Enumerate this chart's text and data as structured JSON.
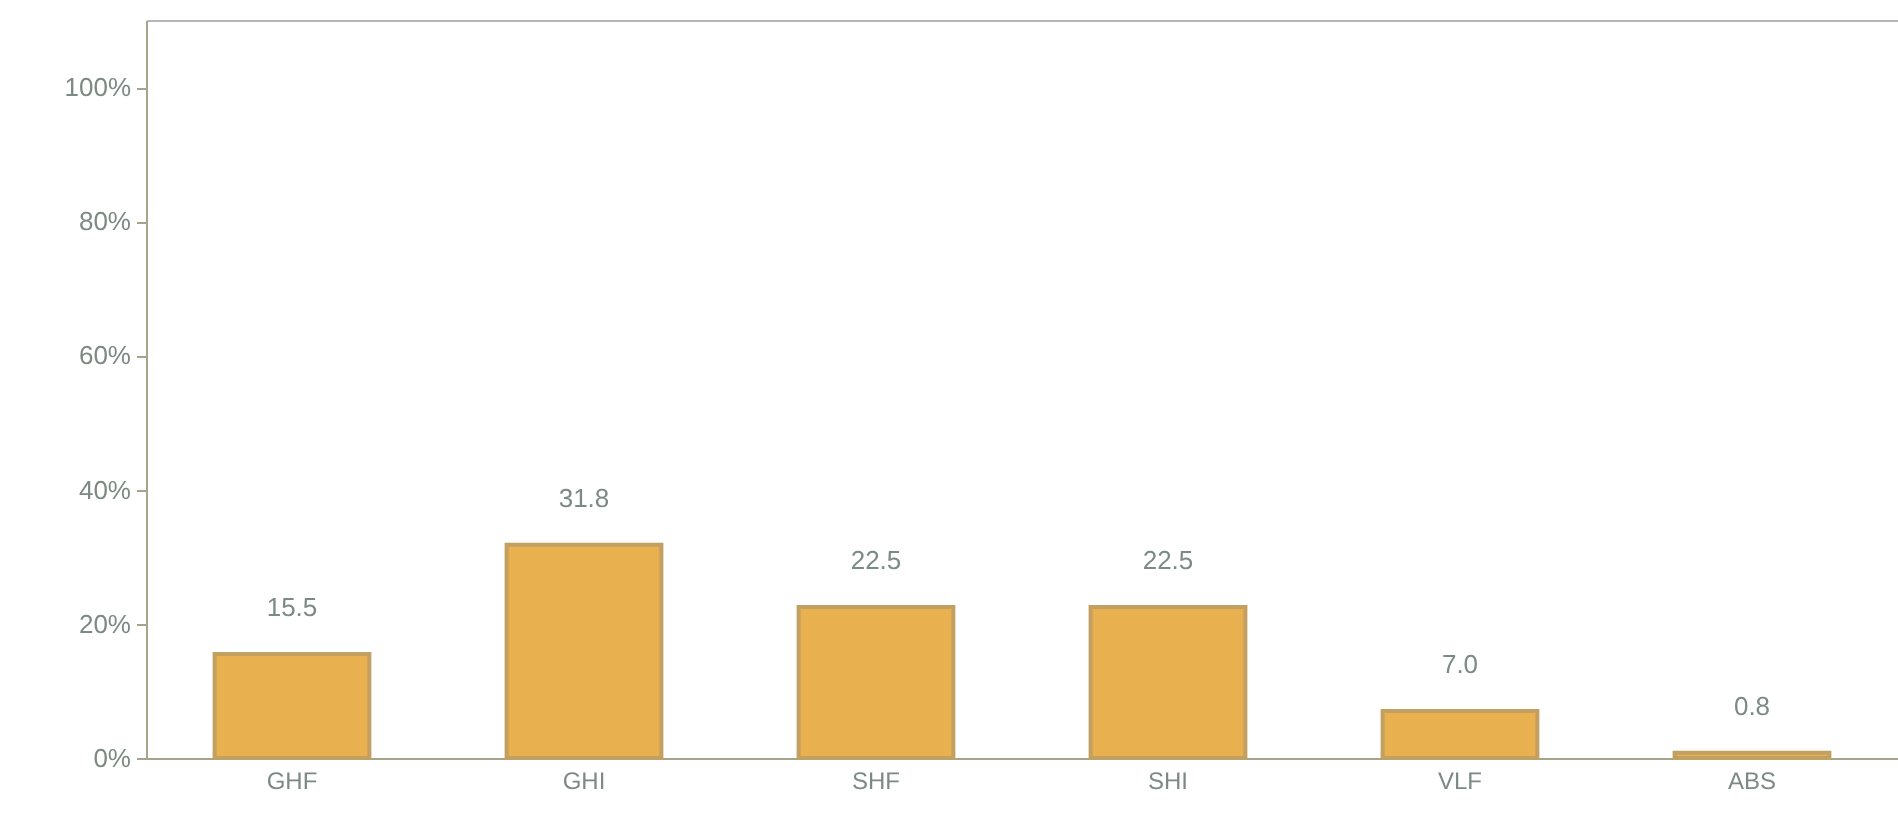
{
  "chart_data": {
    "type": "bar",
    "categories": [
      "GHF",
      "GHI",
      "SHF",
      "SHI",
      "VLF",
      "ABS"
    ],
    "values": [
      15.5,
      31.8,
      22.5,
      22.5,
      7.0,
      0.8
    ],
    "value_labels": [
      "15.5",
      "31.8",
      "22.5",
      "22.5",
      "7.0",
      "0.8"
    ],
    "color": "#e8b04f",
    "ylim": [
      0,
      110
    ],
    "yticks": [
      {
        "value": 0,
        "label": "0%"
      },
      {
        "value": 20,
        "label": "20%"
      },
      {
        "value": 40,
        "label": "40%"
      },
      {
        "value": 60,
        "label": "60%"
      },
      {
        "value": 80,
        "label": "80%"
      },
      {
        "value": 100,
        "label": "100%"
      }
    ]
  }
}
